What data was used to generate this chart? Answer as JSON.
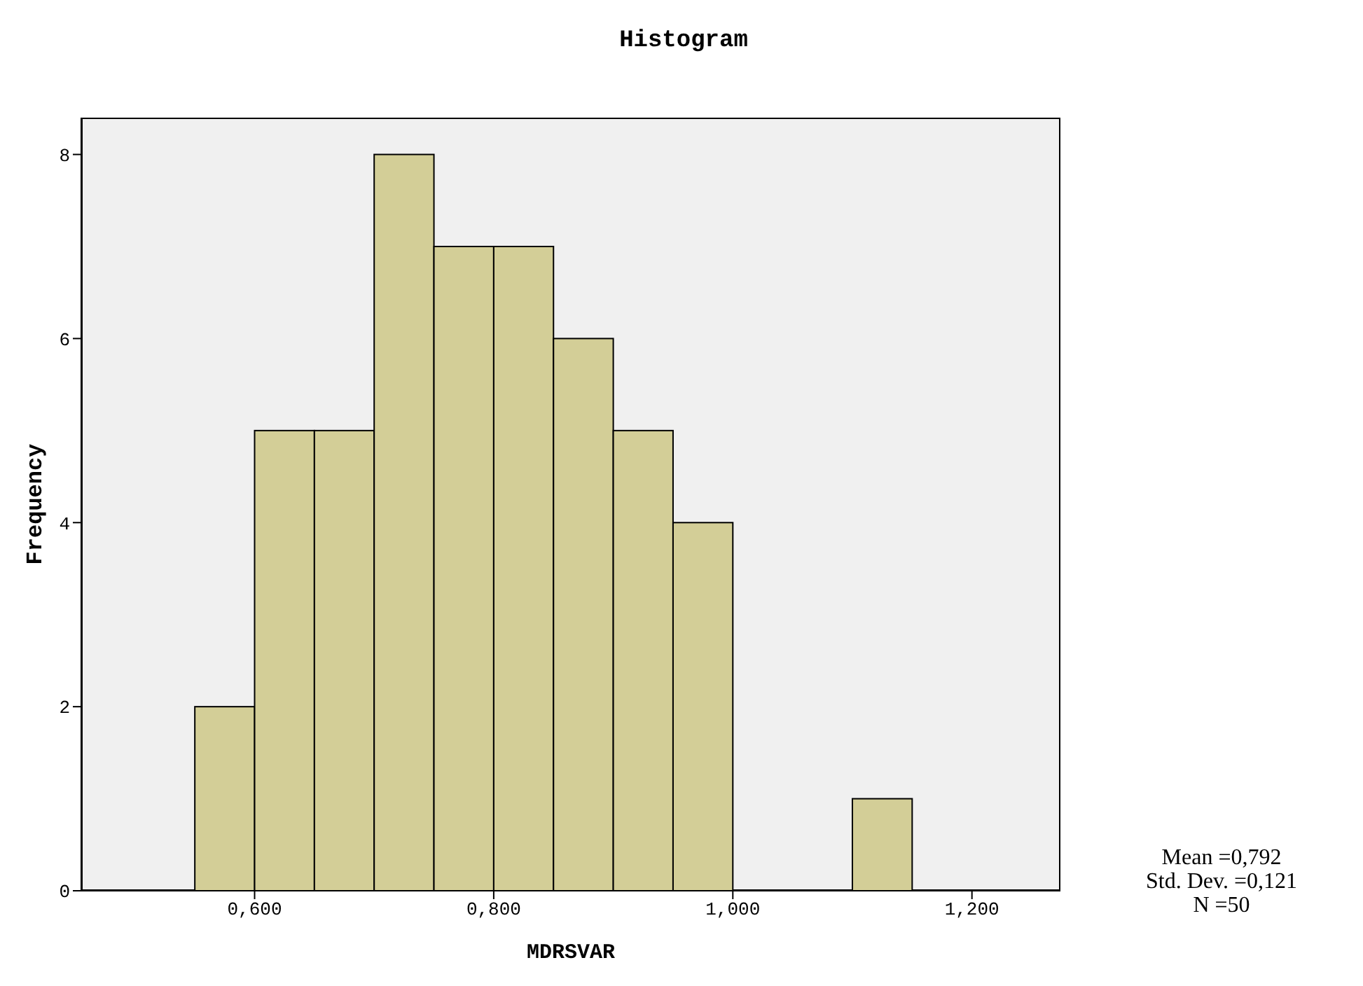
{
  "chart_data": {
    "type": "histogram",
    "title": "Histogram",
    "xlabel": "MDRSVAR",
    "ylabel": "Frequency",
    "bins": [
      0.55,
      0.6,
      0.65,
      0.7,
      0.75,
      0.8,
      0.85,
      0.9,
      0.95,
      1.0,
      1.05,
      1.1,
      1.15
    ],
    "values": [
      2,
      5,
      5,
      8,
      7,
      7,
      6,
      5,
      4,
      0,
      0,
      1
    ],
    "color": "#d3ce97",
    "xlim": [
      0.455,
      1.274
    ],
    "xticks": [
      {
        "value": 0.6,
        "label": "0,600"
      },
      {
        "value": 0.8,
        "label": "0,800"
      },
      {
        "value": 1.0,
        "label": "1,000"
      },
      {
        "value": 1.2,
        "label": "1,200"
      }
    ],
    "ylim": [
      0,
      8.4
    ],
    "yticks": [
      0,
      2,
      4,
      6,
      8
    ],
    "annotations": [
      "Mean =0,792",
      "Std. Dev. =0,121",
      "N =50"
    ]
  }
}
